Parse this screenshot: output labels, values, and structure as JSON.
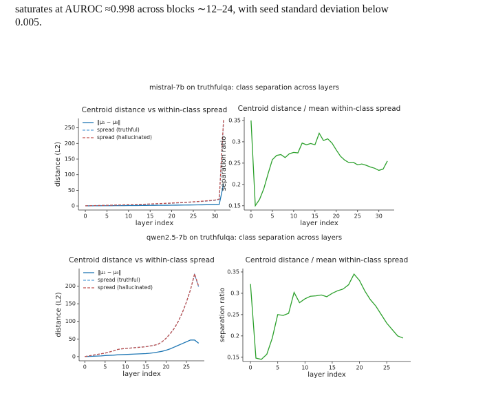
{
  "paragraph": [
    "saturates at AUROC ≈0.998 across blocks ∼12–24, with seed standard deviation below",
    "0.005."
  ],
  "figure_titles": [
    "mistral-7b on truthfulqa: class separation across layers",
    "qwen2.5-7b on truthfulqa: class separation across layers"
  ],
  "chart_data": [
    {
      "type": "line",
      "title": "Centroid distance vs within-class spread",
      "xlabel": "layer index",
      "ylabel": "distance (L2)",
      "x": [
        0,
        1,
        2,
        3,
        4,
        5,
        6,
        7,
        8,
        9,
        10,
        11,
        12,
        13,
        14,
        15,
        16,
        17,
        18,
        19,
        20,
        21,
        22,
        23,
        24,
        25,
        26,
        27,
        28,
        29,
        30,
        31,
        32
      ],
      "xlim": [
        -1.6,
        33.6
      ],
      "xticks": [
        0,
        5,
        10,
        15,
        20,
        25,
        30
      ],
      "ylim": [
        -13,
        280
      ],
      "yticks": [
        0,
        50,
        100,
        150,
        200,
        250
      ],
      "legend": "upper left",
      "series": [
        {
          "name": "‖μ₁ − μ₀‖",
          "color": "#1f77b4",
          "dash": "solid",
          "values": [
            0.3,
            0.4,
            0.5,
            0.6,
            0.7,
            0.8,
            0.9,
            1,
            1.1,
            1.2,
            1.3,
            1.4,
            1.5,
            1.6,
            1.7,
            1.8,
            2,
            2.1,
            2.2,
            2.3,
            2.5,
            2.6,
            2.8,
            3,
            3.1,
            3.3,
            3.5,
            3.7,
            3.9,
            4.2,
            4.5,
            5,
            70
          ]
        },
        {
          "name": "spread (truthful)",
          "color": "#5aa0d8",
          "dash": "dashed",
          "values": [
            0.5,
            0.8,
            1,
            1.3,
            1.6,
            2,
            2.3,
            2.7,
            3,
            3.4,
            3.8,
            4.2,
            4.6,
            5,
            5.5,
            6,
            6.5,
            7,
            7.6,
            8.2,
            8.8,
            9.5,
            10.2,
            11,
            11.8,
            12.6,
            13.5,
            14.5,
            15.5,
            16.8,
            18,
            21,
            272
          ]
        },
        {
          "name": "spread (hallucinated)",
          "color": "#c0504d",
          "dash": "dashed",
          "values": [
            0.5,
            0.8,
            1.1,
            1.4,
            1.7,
            2.1,
            2.4,
            2.8,
            3.2,
            3.6,
            4,
            4.4,
            4.9,
            5.3,
            5.8,
            6.3,
            6.9,
            7.5,
            8.1,
            8.7,
            9.4,
            10.1,
            10.8,
            11.6,
            12.4,
            13.3,
            14.2,
            15.2,
            16.3,
            17.6,
            19,
            22,
            275
          ]
        }
      ]
    },
    {
      "type": "line",
      "title": "Centroid distance / mean within-class spread",
      "xlabel": "layer index",
      "ylabel": "separation ratio",
      "x": [
        0,
        1,
        2,
        3,
        4,
        5,
        6,
        7,
        8,
        9,
        10,
        11,
        12,
        13,
        14,
        15,
        16,
        17,
        18,
        19,
        20,
        21,
        22,
        23,
        24,
        25,
        26,
        27,
        28,
        29,
        30,
        31,
        32
      ],
      "xlim": [
        -1.6,
        33.6
      ],
      "xticks": [
        0,
        5,
        10,
        15,
        20,
        25,
        30
      ],
      "ylim": [
        0.14,
        0.358
      ],
      "yticks": [
        0.15,
        0.2,
        0.25,
        0.3,
        0.35
      ],
      "series": [
        {
          "color": "#2ca02c",
          "dash": "solid",
          "values": [
            0.35,
            0.15,
            0.165,
            0.19,
            0.225,
            0.258,
            0.268,
            0.27,
            0.263,
            0.272,
            0.275,
            0.274,
            0.297,
            0.293,
            0.296,
            0.293,
            0.32,
            0.303,
            0.307,
            0.297,
            0.281,
            0.266,
            0.257,
            0.251,
            0.252,
            0.246,
            0.248,
            0.245,
            0.241,
            0.238,
            0.233,
            0.236,
            0.255
          ]
        }
      ]
    },
    {
      "type": "line",
      "title": "Centroid distance vs within-class spread",
      "xlabel": "layer index",
      "ylabel": "distance (L2)",
      "x": [
        0,
        1,
        2,
        3,
        4,
        5,
        6,
        7,
        8,
        9,
        10,
        11,
        12,
        13,
        14,
        15,
        16,
        17,
        18,
        19,
        20,
        21,
        22,
        23,
        24,
        25,
        26,
        27,
        28
      ],
      "xlim": [
        -1.4,
        29.4
      ],
      "xticks": [
        0,
        5,
        10,
        15,
        20,
        25
      ],
      "ylim": [
        -12,
        250
      ],
      "yticks": [
        0,
        50,
        100,
        150,
        200
      ],
      "legend": "upper left",
      "series": [
        {
          "name": "‖μ₁ − μ₀‖",
          "color": "#1f77b4",
          "dash": "solid",
          "values": [
            0,
            0.5,
            1,
            1.5,
            2,
            3,
            3.5,
            4,
            5,
            5.5,
            6,
            6.5,
            7,
            7.5,
            8,
            8.5,
            9.5,
            11,
            13,
            15,
            18,
            22,
            27,
            32,
            37,
            42,
            47,
            47,
            38
          ]
        },
        {
          "name": "spread (truthful)",
          "color": "#5aa0d8",
          "dash": "dashed",
          "values": [
            0,
            2,
            4,
            6,
            8,
            10,
            13,
            16,
            20,
            22,
            23,
            24,
            25,
            26,
            27,
            28,
            30,
            32,
            35,
            42,
            52,
            65,
            80,
            100,
            125,
            155,
            190,
            233,
            198
          ]
        },
        {
          "name": "spread (hallucinated)",
          "color": "#c0504d",
          "dash": "dashed",
          "values": [
            0,
            2,
            4,
            6,
            8,
            10,
            13,
            16,
            20,
            22,
            23,
            24,
            25,
            26,
            27,
            28,
            30,
            32,
            35,
            42,
            52,
            65,
            80,
            100,
            125,
            155,
            190,
            235,
            200
          ]
        }
      ]
    },
    {
      "type": "line",
      "title": "Centroid distance / mean within-class spread",
      "xlabel": "layer index",
      "ylabel": "separation ratio",
      "x": [
        0,
        1,
        2,
        3,
        4,
        5,
        6,
        7,
        8,
        9,
        10,
        11,
        12,
        13,
        14,
        15,
        16,
        17,
        18,
        19,
        20,
        21,
        22,
        23,
        24,
        25,
        26,
        27,
        28
      ],
      "xlim": [
        -1.4,
        29.4
      ],
      "xticks": [
        0,
        5,
        10,
        15,
        20,
        25
      ],
      "ylim": [
        0.14,
        0.358
      ],
      "yticks": [
        0.15,
        0.2,
        0.25,
        0.3,
        0.35
      ],
      "series": [
        {
          "color": "#2ca02c",
          "dash": "solid",
          "values": [
            0.322,
            0.148,
            0.145,
            0.157,
            0.195,
            0.25,
            0.248,
            0.253,
            0.302,
            0.278,
            0.287,
            0.293,
            0.294,
            0.296,
            0.292,
            0.3,
            0.306,
            0.31,
            0.32,
            0.345,
            0.33,
            0.305,
            0.285,
            0.27,
            0.25,
            0.23,
            0.215,
            0.2,
            0.195
          ]
        }
      ]
    }
  ]
}
